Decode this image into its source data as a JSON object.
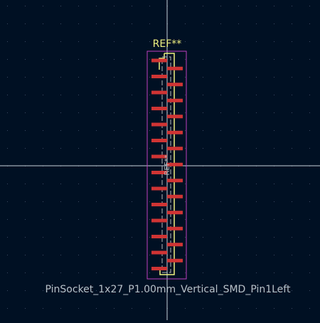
{
  "footprint": {
    "reference": "REF**",
    "reference_fab": "REF**",
    "value": "PinSocket_1x27_P1.00mm_Vertical_SMD_Pin1Left",
    "pin_count": 27,
    "pitch_mm": 1.0,
    "pin1_side": "left"
  },
  "colors": {
    "background": "#001023",
    "grid_dot": "#3a4a63",
    "crosshair": "#c8d0da",
    "courtyard": "#c040c0",
    "silkscreen": "#f0f080",
    "fab": "#b8b8b8",
    "pad": "#d03434",
    "value_text": "#b8c0c8"
  }
}
